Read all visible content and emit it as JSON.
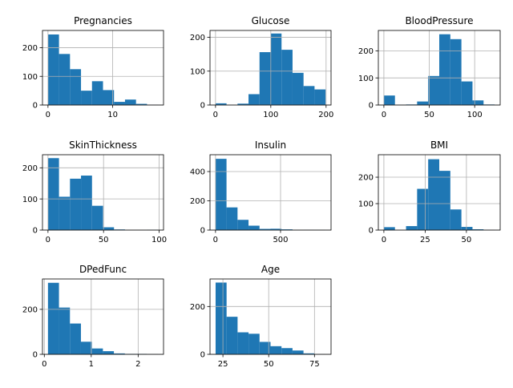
{
  "figure": {
    "background": "#ffffff",
    "bar_color": "#1f77b4",
    "grid_color": "#b0b0b0"
  },
  "chart_data": [
    {
      "type": "bar",
      "title": "Pregnancies",
      "grid": true,
      "xlim": [
        -0.85,
        17.85
      ],
      "ylim": [
        0,
        260
      ],
      "xticks": [
        0,
        10
      ],
      "yticks": [
        0,
        100,
        200
      ],
      "bin_edges": [
        0,
        1.7,
        3.4,
        5.1,
        6.8,
        8.5,
        10.2,
        11.9,
        13.6,
        15.3,
        17
      ],
      "values": [
        246,
        178,
        125,
        50,
        83,
        52,
        11,
        19,
        4,
        1
      ]
    },
    {
      "type": "bar",
      "title": "Glucose",
      "grid": true,
      "xlim": [
        -9.95,
        208.95
      ],
      "ylim": [
        0,
        220
      ],
      "xticks": [
        0,
        100,
        200
      ],
      "yticks": [
        0,
        100,
        200
      ],
      "bin_edges": [
        0,
        19.9,
        39.8,
        59.7,
        79.6,
        99.5,
        119.4,
        139.3,
        159.2,
        179.1,
        199
      ],
      "values": [
        5,
        0,
        4,
        32,
        156,
        211,
        163,
        95,
        56,
        46
      ]
    },
    {
      "type": "bar",
      "title": "BloodPressure",
      "grid": true,
      "xlim": [
        -6.1,
        128.1
      ],
      "ylim": [
        0,
        275
      ],
      "xticks": [
        0,
        50,
        100
      ],
      "yticks": [
        0,
        100,
        200
      ],
      "bin_edges": [
        0,
        12.2,
        24.4,
        36.6,
        48.8,
        61,
        73.2,
        85.4,
        97.6,
        109.8,
        122
      ],
      "values": [
        35,
        1,
        2,
        13,
        107,
        261,
        243,
        87,
        17,
        2
      ]
    },
    {
      "type": "bar",
      "title": "SkinThickness",
      "grid": true,
      "xlim": [
        -4.95,
        103.95
      ],
      "ylim": [
        0,
        242
      ],
      "xticks": [
        0,
        50,
        100
      ],
      "yticks": [
        0,
        100,
        200
      ],
      "bin_edges": [
        0,
        9.9,
        19.8,
        29.7,
        39.6,
        49.5,
        59.4,
        69.3,
        79.2,
        89.1,
        99
      ],
      "values": [
        231,
        107,
        165,
        175,
        78,
        9,
        2,
        0,
        0,
        1
      ]
    },
    {
      "type": "bar",
      "title": "Insulin",
      "grid": true,
      "xlim": [
        -42.3,
        888.3
      ],
      "ylim": [
        0,
        515
      ],
      "xticks": [
        0,
        500
      ],
      "yticks": [
        0,
        200,
        400
      ],
      "bin_edges": [
        0,
        84.6,
        169.2,
        253.8,
        338.4,
        423,
        507.6,
        592.2,
        676.8,
        761.4,
        846
      ],
      "values": [
        487,
        155,
        70,
        30,
        8,
        9,
        5,
        1,
        2,
        1
      ]
    },
    {
      "type": "bar",
      "title": "BMI",
      "grid": true,
      "xlim": [
        -3.355,
        70.455
      ],
      "ylim": [
        0,
        285
      ],
      "xticks": [
        0,
        25,
        50
      ],
      "yticks": [
        0,
        100,
        200
      ],
      "bin_edges": [
        0,
        6.71,
        13.42,
        20.13,
        26.84,
        33.55,
        40.26,
        46.97,
        53.68,
        60.39,
        67.1
      ],
      "values": [
        11,
        0,
        15,
        156,
        268,
        224,
        78,
        12,
        3,
        1
      ]
    },
    {
      "type": "bar",
      "title": "DPedFunc",
      "grid": true,
      "xlim": [
        -0.039,
        2.541
      ],
      "ylim": [
        0,
        335
      ],
      "xticks": [
        0,
        1,
        2
      ],
      "yticks": [
        0,
        200
      ],
      "bin_edges": [
        0.078,
        0.3122,
        0.5464,
        0.7806,
        1.0148,
        1.249,
        1.4832,
        1.7174,
        1.9516,
        2.1858,
        2.42
      ],
      "values": [
        318,
        208,
        137,
        56,
        26,
        14,
        4,
        2,
        2,
        1
      ]
    },
    {
      "type": "bar",
      "title": "Age",
      "grid": true,
      "xlim": [
        17.95,
        84.05
      ],
      "ylim": [
        0,
        315
      ],
      "xticks": [
        25,
        50,
        75
      ],
      "yticks": [
        0,
        200
      ],
      "bin_edges": [
        21,
        27,
        33,
        39,
        45,
        51,
        57,
        63,
        69,
        75,
        81
      ],
      "values": [
        300,
        157,
        92,
        86,
        52,
        34,
        26,
        16,
        4,
        1
      ]
    }
  ]
}
